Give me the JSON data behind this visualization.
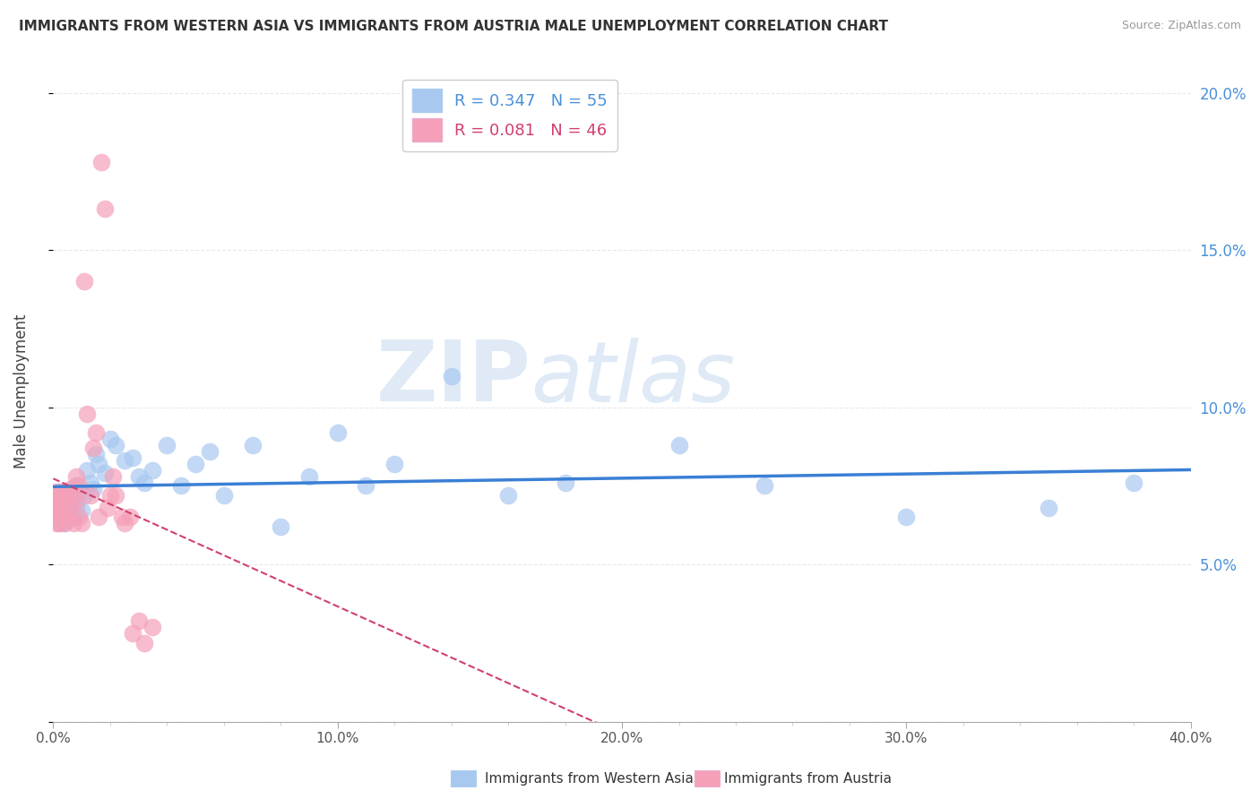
{
  "title": "IMMIGRANTS FROM WESTERN ASIA VS IMMIGRANTS FROM AUSTRIA MALE UNEMPLOYMENT CORRELATION CHART",
  "source": "Source: ZipAtlas.com",
  "ylabel": "Male Unemployment",
  "series": [
    {
      "name": "Immigrants from Western Asia",
      "R": 0.347,
      "N": 55,
      "color": "#a8c8f0",
      "line_color": "#3a7fd5",
      "x": [
        0.0005,
        0.001,
        0.001,
        0.002,
        0.002,
        0.002,
        0.003,
        0.003,
        0.003,
        0.004,
        0.004,
        0.005,
        0.005,
        0.005,
        0.006,
        0.006,
        0.007,
        0.007,
        0.008,
        0.008,
        0.009,
        0.01,
        0.011,
        0.012,
        0.013,
        0.014,
        0.015,
        0.016,
        0.018,
        0.02,
        0.022,
        0.025,
        0.028,
        0.03,
        0.032,
        0.035,
        0.04,
        0.045,
        0.05,
        0.055,
        0.06,
        0.07,
        0.08,
        0.09,
        0.1,
        0.11,
        0.12,
        0.14,
        0.16,
        0.18,
        0.22,
        0.25,
        0.3,
        0.35,
        0.38
      ],
      "y": [
        0.065,
        0.068,
        0.072,
        0.063,
        0.07,
        0.073,
        0.065,
        0.068,
        0.072,
        0.063,
        0.07,
        0.065,
        0.071,
        0.068,
        0.07,
        0.073,
        0.065,
        0.072,
        0.068,
        0.075,
        0.073,
        0.067,
        0.072,
        0.08,
        0.076,
        0.074,
        0.085,
        0.082,
        0.079,
        0.09,
        0.088,
        0.083,
        0.084,
        0.078,
        0.076,
        0.08,
        0.088,
        0.075,
        0.082,
        0.086,
        0.072,
        0.088,
        0.062,
        0.078,
        0.092,
        0.075,
        0.082,
        0.11,
        0.072,
        0.076,
        0.088,
        0.075,
        0.065,
        0.068,
        0.076
      ]
    },
    {
      "name": "Immigrants from Austria",
      "R": 0.081,
      "N": 46,
      "color": "#f5a0b8",
      "line_color": "#d04070",
      "x": [
        0.0002,
        0.0004,
        0.0006,
        0.0008,
        0.001,
        0.001,
        0.0012,
        0.0015,
        0.002,
        0.002,
        0.002,
        0.003,
        0.003,
        0.003,
        0.004,
        0.004,
        0.005,
        0.005,
        0.006,
        0.006,
        0.007,
        0.007,
        0.008,
        0.008,
        0.009,
        0.009,
        0.01,
        0.011,
        0.012,
        0.013,
        0.014,
        0.015,
        0.016,
        0.017,
        0.018,
        0.019,
        0.02,
        0.021,
        0.022,
        0.024,
        0.025,
        0.027,
        0.028,
        0.03,
        0.032,
        0.035
      ],
      "y": [
        0.065,
        0.068,
        0.07,
        0.072,
        0.063,
        0.073,
        0.065,
        0.068,
        0.063,
        0.07,
        0.072,
        0.065,
        0.073,
        0.068,
        0.063,
        0.072,
        0.065,
        0.073,
        0.068,
        0.074,
        0.063,
        0.072,
        0.07,
        0.078,
        0.065,
        0.075,
        0.063,
        0.14,
        0.098,
        0.072,
        0.087,
        0.092,
        0.065,
        0.178,
        0.163,
        0.068,
        0.072,
        0.078,
        0.072,
        0.065,
        0.063,
        0.065,
        0.028,
        0.032,
        0.025,
        0.03
      ]
    }
  ],
  "xlim": [
    0,
    0.4
  ],
  "ylim": [
    0,
    0.21
  ],
  "yticks": [
    0.0,
    0.05,
    0.1,
    0.15,
    0.2
  ],
  "ytick_labels_right": [
    "",
    "5.0%",
    "10.0%",
    "15.0%",
    "20.0%"
  ],
  "xtick_labels": [
    "0.0%",
    "",
    "",
    "",
    "",
    "10.0%",
    "",
    "",
    "",
    "",
    "20.0%",
    "",
    "",
    "",
    "",
    "30.0%",
    "",
    "",
    "",
    "",
    "40.0%"
  ],
  "xticks": [
    0.0,
    0.02,
    0.04,
    0.06,
    0.08,
    0.1,
    0.12,
    0.14,
    0.16,
    0.18,
    0.2,
    0.22,
    0.24,
    0.26,
    0.28,
    0.3,
    0.32,
    0.34,
    0.36,
    0.38,
    0.4
  ],
  "watermark_zip": "ZIP",
  "watermark_atlas": "atlas",
  "background_color": "#ffffff",
  "grid_color": "#e8e8e8",
  "grid_style": "--"
}
